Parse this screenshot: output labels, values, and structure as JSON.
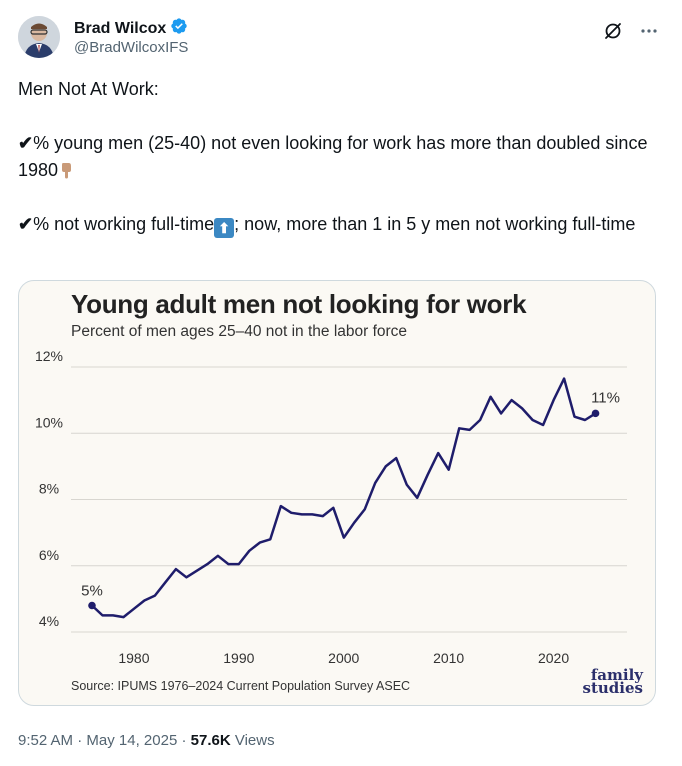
{
  "author": {
    "display_name": "Brad Wilcox",
    "handle": "@BradWilcoxIFS",
    "verified": true
  },
  "header_actions": {
    "grok_icon": "grok-icon",
    "more_icon": "more-icon"
  },
  "tweet": {
    "line1": "Men Not At Work:",
    "check_mark": "✔",
    "line2": "% young men (25-40) not even looking for work has more than doubled since 1980",
    "line3_a": "% not working full-time",
    "line3_b": "; now, more than 1 in 5 y men not working full-time"
  },
  "media": {
    "source": "Source: IPUMS 1976–2024 Current Population Survey ASEC",
    "logo_line1": "family",
    "logo_line2": "studies"
  },
  "chart_data": {
    "type": "line",
    "title": "Young adult men not looking for work",
    "subtitle": "Percent of men ages 25–40 not in the labor force",
    "x_ticks": [
      "1980",
      "1990",
      "2000",
      "2010",
      "2020"
    ],
    "y_ticks": [
      "12%",
      "10%",
      "8%",
      "6%",
      "4%"
    ],
    "ylim": [
      4,
      12
    ],
    "xlim": [
      1974,
      2027
    ],
    "grid": true,
    "color": "#1f1d6b",
    "start_label": "5%",
    "end_label": "11%",
    "series": [
      {
        "x": [
          1976,
          1977,
          1978,
          1979,
          1980,
          1981,
          1982,
          1983,
          1984,
          1985,
          1986,
          1987,
          1988,
          1989,
          1990,
          1991,
          1992,
          1993,
          1994,
          1995,
          1996,
          1997,
          1998,
          1999,
          2000,
          2001,
          2002,
          2003,
          2004,
          2005,
          2006,
          2007,
          2008,
          2009,
          2010,
          2011,
          2012,
          2013,
          2014,
          2015,
          2016,
          2017,
          2018,
          2019,
          2020,
          2021,
          2022,
          2023,
          2024
        ],
        "y": [
          4.8,
          4.5,
          4.5,
          4.45,
          4.7,
          4.95,
          5.1,
          5.5,
          5.9,
          5.65,
          5.85,
          6.05,
          6.3,
          6.05,
          6.05,
          6.45,
          6.7,
          6.8,
          7.8,
          7.6,
          7.55,
          7.55,
          7.5,
          7.75,
          6.85,
          7.3,
          7.7,
          8.5,
          9.0,
          9.25,
          8.45,
          8.05,
          8.75,
          9.4,
          8.9,
          10.15,
          10.1,
          10.4,
          11.1,
          10.6,
          11.0,
          10.75,
          10.4,
          10.25,
          11.0,
          11.65,
          10.5,
          10.4,
          10.6
        ]
      }
    ]
  },
  "meta": {
    "time": "9:52 AM",
    "separator": "·",
    "date": "May 14, 2025",
    "views_count": "57.6K",
    "views_label": "Views"
  }
}
